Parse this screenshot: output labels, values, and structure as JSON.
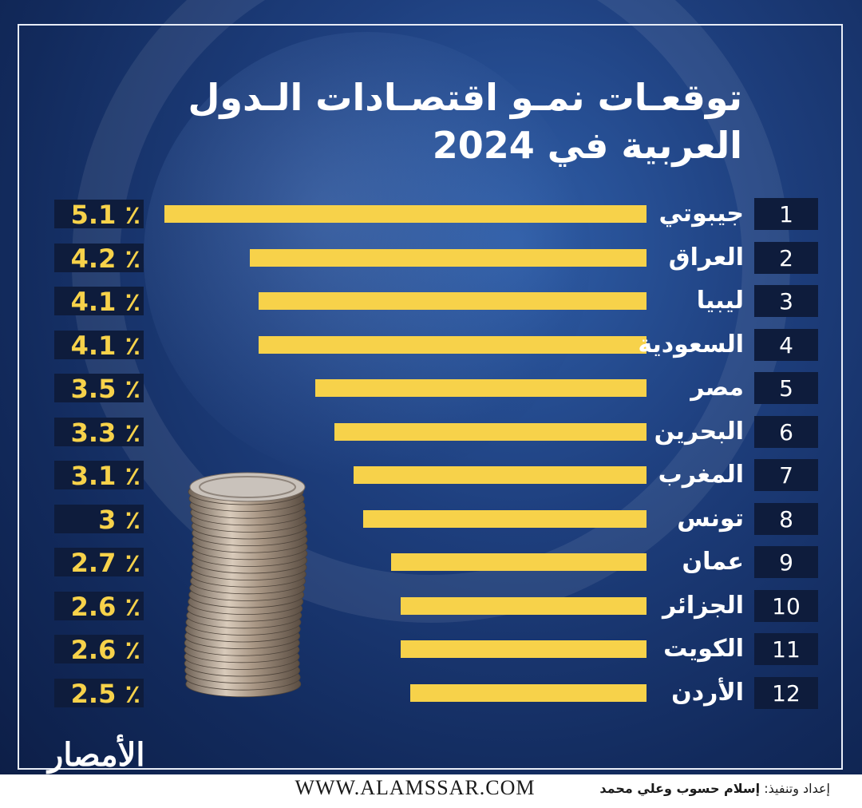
{
  "title_line1": "توقعـات نمـو اقتصـادات الـدول",
  "title_line2": "العربية في 2024",
  "chart_data": {
    "type": "bar",
    "categories": [
      "جيبوتي",
      "العراق",
      "ليبيا",
      "السعودية",
      "مصر",
      "البحرين",
      "المغرب",
      "تونس",
      "عمان",
      "الجزائر",
      "الكويت",
      "الأردن"
    ],
    "ranks": [
      "1",
      "2",
      "3",
      "4",
      "5",
      "6",
      "7",
      "8",
      "9",
      "10",
      "11",
      "12"
    ],
    "values": [
      5.1,
      4.2,
      4.1,
      4.1,
      3.5,
      3.3,
      3.1,
      3,
      2.7,
      2.6,
      2.6,
      2.5
    ],
    "labels": [
      "٪ 5.1",
      "٪ 4.2",
      "٪ 4.1",
      "٪ 4.1",
      "٪ 3.5",
      "٪ 3.3",
      "٪ 3.1",
      "٪ 3",
      "٪ 2.7",
      "٪ 2.6",
      "٪ 2.6",
      "٪ 2.5"
    ],
    "title": "توقعـات نمـو اقتصـادات الـدول العربية في 2024",
    "bar_color": "#f7d24a"
  },
  "logo_text": "الأمصار",
  "website": "WWW.ALAMSSAR.COM",
  "credit_label": "إعداد وتنفيذ:",
  "credit_names": "إسلام حسوب وعلي محمد"
}
